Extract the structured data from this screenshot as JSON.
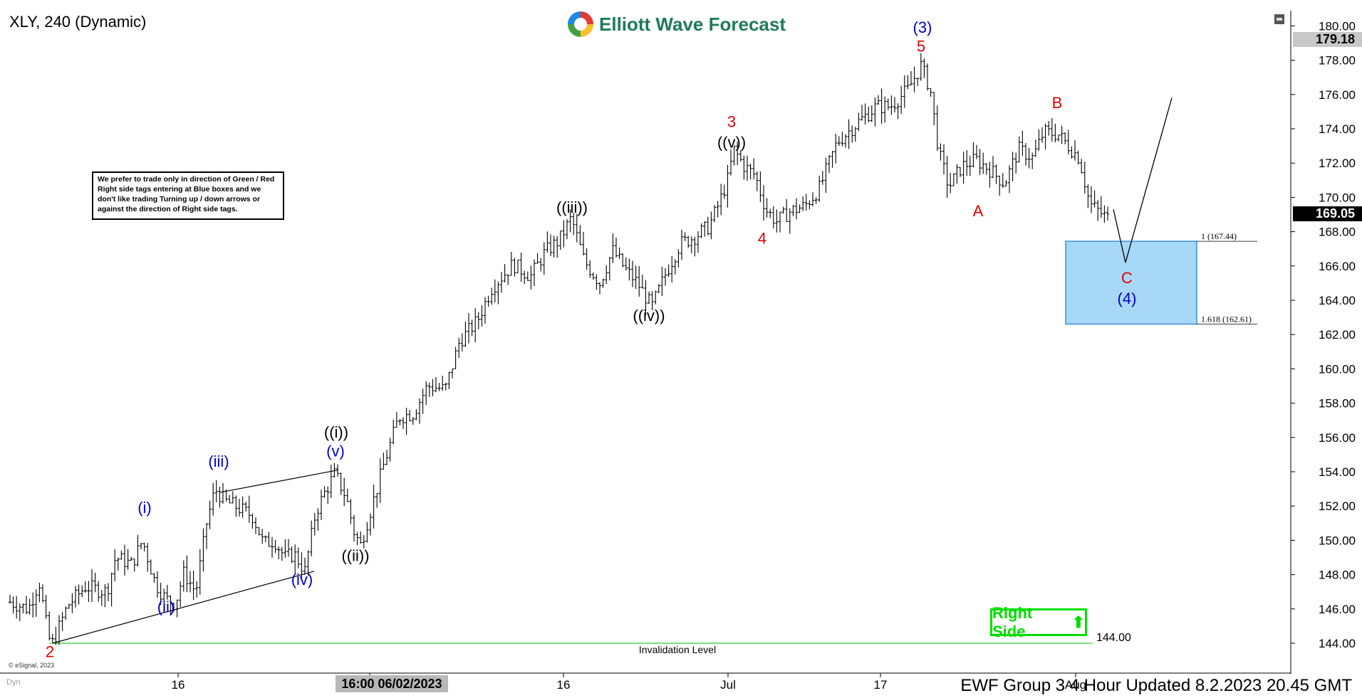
{
  "header": {
    "title": "XLY, 240 (Dynamic)",
    "logo_text": "Elliott Wave Forecast"
  },
  "note": "We prefer to trade only in direction of Green / Red Right side tags entering at Blue boxes and we don't like trading Turning up / down arrows or against the direction of Right side tags.",
  "footer": "EWF Group 3 4 Hour Updated 8.2.2023 20.45 GMT",
  "copyright": "© eSignal, 2023",
  "dyn_label": "Dyn",
  "colors": {
    "red": "#e00000",
    "blue": "#0000cc",
    "box_fill": "#a8d8f8",
    "box_stroke": "#3a8fd8",
    "invalidation": "#33cc33",
    "right_side": "#00dd00"
  },
  "chart_data": {
    "type": "bar",
    "ylim": [
      143.0,
      181.0
    ],
    "xlim": [
      0,
      1580
    ],
    "y_ticks": [
      144,
      146,
      148,
      150,
      152,
      154,
      156,
      158,
      160,
      162,
      164,
      166,
      168,
      170,
      172,
      174,
      176,
      178,
      180
    ],
    "y_tick_labels": [
      "144.00",
      "146.00",
      "148.00",
      "150.00",
      "152.00",
      "154.00",
      "156.00",
      "158.00",
      "160.00",
      "162.00",
      "164.00",
      "166.00",
      "168.00",
      "170.00",
      "172.00",
      "174.00",
      "176.00",
      "178.00",
      "180.00"
    ],
    "x_ticks": [
      {
        "x": 250,
        "label": "16"
      },
      {
        "x": 791,
        "label": "16"
      },
      {
        "x": 1022,
        "label": "Jul"
      },
      {
        "x": 1236,
        "label": "17"
      },
      {
        "x": 1510,
        "label": "Aug"
      }
    ],
    "date_marker": {
      "x": 519,
      "label": "16:00 06/02/2023"
    },
    "current_price": {
      "value": 179.18,
      "label": "179.18"
    },
    "last_price": {
      "value": 169.05,
      "label": "169.05"
    },
    "price_path": [
      [
        14,
        146.4
      ],
      [
        40,
        146.0
      ],
      [
        55,
        147.6
      ],
      [
        68,
        144.3
      ],
      [
        74,
        144.0
      ],
      [
        95,
        146.2
      ],
      [
        120,
        147.3
      ],
      [
        150,
        147.0
      ],
      [
        162,
        149.0
      ],
      [
        185,
        148.6
      ],
      [
        200,
        150.0
      ],
      [
        218,
        147.5
      ],
      [
        232,
        146.6
      ],
      [
        246,
        146.3
      ],
      [
        258,
        148.1
      ],
      [
        275,
        147.0
      ],
      [
        290,
        151.0
      ],
      [
        302,
        153.0
      ],
      [
        315,
        152.3
      ],
      [
        330,
        152.0
      ],
      [
        355,
        151.4
      ],
      [
        370,
        149.8
      ],
      [
        385,
        150.0
      ],
      [
        400,
        149.0
      ],
      [
        413,
        149.2
      ],
      [
        428,
        148.2
      ],
      [
        443,
        151.6
      ],
      [
        456,
        152.8
      ],
      [
        470,
        153.9
      ],
      [
        486,
        152.5
      ],
      [
        497,
        150.5
      ],
      [
        506,
        149.7
      ],
      [
        522,
        152.0
      ],
      [
        540,
        154.6
      ],
      [
        560,
        157.2
      ],
      [
        580,
        157.4
      ],
      [
        600,
        159.0
      ],
      [
        625,
        158.8
      ],
      [
        645,
        161.6
      ],
      [
        670,
        162.8
      ],
      [
        690,
        164.7
      ],
      [
        720,
        166.1
      ],
      [
        745,
        165.4
      ],
      [
        765,
        166.8
      ],
      [
        785,
        167.5
      ],
      [
        802,
        168.8
      ],
      [
        820,
        166.3
      ],
      [
        842,
        165.0
      ],
      [
        860,
        166.9
      ],
      [
        878,
        165.8
      ],
      [
        895,
        165.0
      ],
      [
        915,
        163.6
      ],
      [
        935,
        165.6
      ],
      [
        955,
        167.3
      ],
      [
        975,
        167.7
      ],
      [
        995,
        168.3
      ],
      [
        1010,
        169.7
      ],
      [
        1022,
        171.1
      ],
      [
        1030,
        172.8
      ],
      [
        1045,
        171.8
      ],
      [
        1060,
        171.3
      ],
      [
        1075,
        169.3
      ],
      [
        1090,
        168.6
      ],
      [
        1110,
        169.2
      ],
      [
        1130,
        169.5
      ],
      [
        1150,
        170.5
      ],
      [
        1175,
        173.2
      ],
      [
        1200,
        174.2
      ],
      [
        1230,
        175.3
      ],
      [
        1250,
        175.3
      ],
      [
        1275,
        176.3
      ],
      [
        1293,
        177.7
      ],
      [
        1306,
        176.3
      ],
      [
        1318,
        172.6
      ],
      [
        1332,
        170.6
      ],
      [
        1350,
        171.8
      ],
      [
        1370,
        172.2
      ],
      [
        1390,
        171.6
      ],
      [
        1410,
        170.8
      ],
      [
        1430,
        172.8
      ],
      [
        1450,
        172.3
      ],
      [
        1465,
        173.8
      ],
      [
        1485,
        173.7
      ],
      [
        1500,
        173.0
      ],
      [
        1515,
        172.3
      ],
      [
        1530,
        169.6
      ],
      [
        1548,
        169.0
      ],
      [
        1558,
        168.7
      ]
    ],
    "annotations": [
      {
        "text": "2",
        "x": 70,
        "y": 143.2,
        "color": "red"
      },
      {
        "text": "(i)",
        "x": 203,
        "y": 151.6,
        "color": "blue"
      },
      {
        "text": "(ii)",
        "x": 233,
        "y": 145.8,
        "color": "blue"
      },
      {
        "text": "(iii)",
        "x": 307,
        "y": 154.3,
        "color": "blue"
      },
      {
        "text": "(iv)",
        "x": 424,
        "y": 147.4,
        "color": "blue"
      },
      {
        "text": "(v)",
        "x": 471,
        "y": 154.9,
        "color": "blue"
      },
      {
        "text": "((i))",
        "x": 472,
        "y": 156.0,
        "color": "black"
      },
      {
        "text": "((ii))",
        "x": 499,
        "y": 148.8,
        "color": "black"
      },
      {
        "text": "((iii))",
        "x": 803,
        "y": 169.1,
        "color": "black"
      },
      {
        "text": "((iv))",
        "x": 911,
        "y": 162.8,
        "color": "black"
      },
      {
        "text": "((v))",
        "x": 1027,
        "y": 172.9,
        "color": "black"
      },
      {
        "text": "3",
        "x": 1027,
        "y": 174.1,
        "color": "red"
      },
      {
        "text": "4",
        "x": 1070,
        "y": 167.3,
        "color": "red"
      },
      {
        "text": "(3)",
        "x": 1295,
        "y": 179.6,
        "color": "blue"
      },
      {
        "text": "5",
        "x": 1293,
        "y": 178.5,
        "color": "red"
      },
      {
        "text": "A",
        "x": 1373,
        "y": 168.9,
        "color": "red"
      },
      {
        "text": "B",
        "x": 1484,
        "y": 175.2,
        "color": "red"
      },
      {
        "text": "C",
        "x": 1582,
        "y": 165.0,
        "color": "red"
      },
      {
        "text": "(4)",
        "x": 1582,
        "y": 163.8,
        "color": "blue"
      }
    ],
    "diagonal_lines": [
      {
        "x1": 74,
        "y1": 144.0,
        "x2": 441,
        "y2": 148.2
      },
      {
        "x1": 309,
        "y1": 152.8,
        "x2": 475,
        "y2": 154.1
      }
    ],
    "projection_path": [
      [
        1563,
        169.3
      ],
      [
        1580,
        166.2
      ],
      [
        1645,
        175.8
      ]
    ],
    "blue_box": {
      "x1": 1496,
      "x2": 1680,
      "y_top": 167.44,
      "y_bottom": 162.61,
      "label_top": "1 (167.44)",
      "label_bottom": "1.618 (162.61)"
    },
    "invalidation": {
      "value": 144.0,
      "label": "144.00",
      "text": "Invalidation Level"
    },
    "right_side_label": "Right Side"
  }
}
